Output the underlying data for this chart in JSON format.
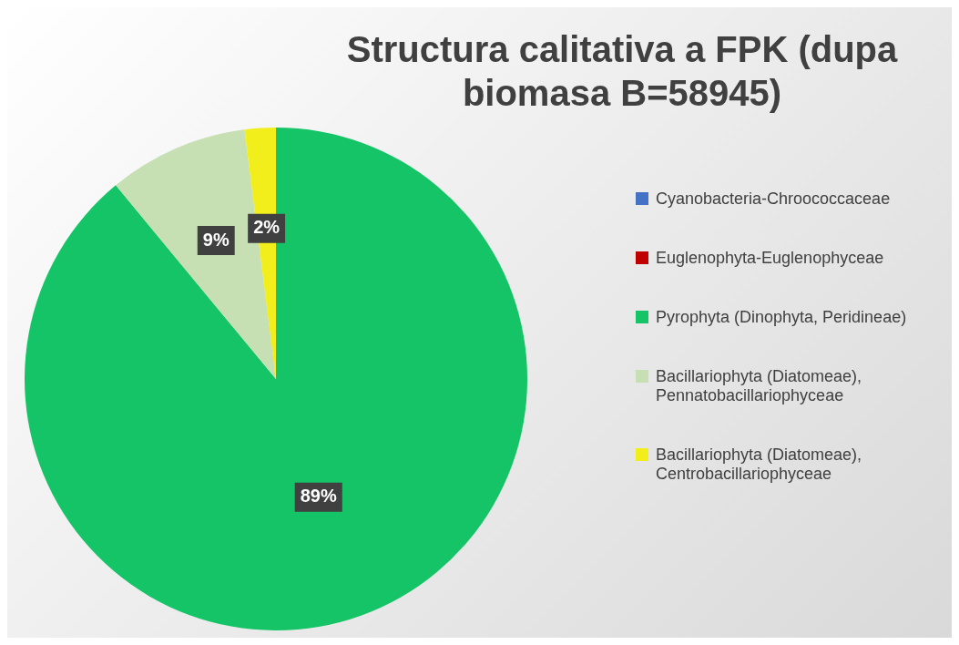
{
  "chart_data": {
    "type": "pie",
    "title": "Structura calitativa a FPK (dupa biomasa B=58945)",
    "categories": [
      "Cyanobacteria-Chroococcaceae",
      "Euglenophyta-Euglenophyceae",
      "Pyrophyta (Dinophyta, Peridineae)",
      "Bacillariophyta (Diatomeae), Pennatobacillariophyceae",
      "Bacillariophyta (Diatomeae), Centrobacillariophyceae"
    ],
    "values": [
      0,
      0,
      89,
      9,
      2
    ],
    "colors": [
      "#4472c4",
      "#c00000",
      "#14c466",
      "#c6e0b4",
      "#f2ee1c"
    ],
    "value_labels": [
      null,
      null,
      "89%",
      "9%",
      "2%"
    ],
    "legend": "right"
  }
}
